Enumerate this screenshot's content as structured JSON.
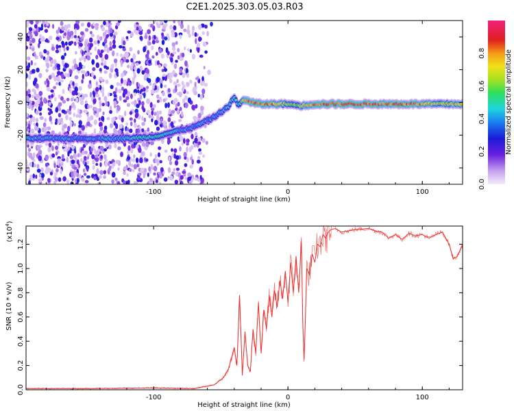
{
  "title": "C2E1.2025.303.05.03.R03",
  "chart_data": [
    {
      "type": "heatmap",
      "name": "spectrogram",
      "xlabel": "Height of straight line (km)",
      "ylabel": "Frequency (Hz)",
      "xlim": [
        -195,
        130
      ],
      "ylim": [
        -50,
        50
      ],
      "xticks": [
        -100,
        0,
        100
      ],
      "xtick_labels": [
        "-100",
        "0",
        "100"
      ],
      "yticks": [
        -40,
        -20,
        0,
        20,
        40
      ],
      "ytick_labels": [
        "-40",
        "-20",
        "0",
        "20",
        "40"
      ],
      "colorbar": {
        "label": "Normalized spectral amplitude",
        "range": [
          0,
          1
        ],
        "ticks": [
          0.0,
          0.2,
          0.4,
          0.6,
          0.8
        ],
        "tick_labels": [
          "0.0",
          "0.2",
          "0.4",
          "0.6",
          "0.8"
        ]
      },
      "ridge": {
        "x": [
          -195,
          -150,
          -120,
          -100,
          -85,
          -70,
          -55,
          -45,
          -40,
          -37,
          -33,
          -28,
          -20,
          -10,
          0,
          10,
          20,
          40,
          60,
          80,
          100,
          115,
          130
        ],
        "freq_hz": [
          -22,
          -22,
          -22,
          -21,
          -18,
          -15,
          -9,
          -3,
          3,
          -2,
          2,
          0,
          -1,
          -1,
          -1,
          -2,
          -1,
          -1,
          -1,
          -1,
          -1,
          -1,
          -1
        ],
        "amplitude": [
          0.45,
          0.4,
          0.45,
          0.5,
          0.45,
          0.4,
          0.4,
          0.45,
          0.5,
          0.45,
          0.7,
          0.9,
          0.85,
          0.8,
          0.6,
          0.7,
          0.85,
          0.9,
          0.9,
          0.9,
          0.85,
          0.7,
          0.8
        ]
      },
      "noise_region_x": [
        -195,
        -65
      ]
    },
    {
      "type": "line",
      "name": "snr",
      "xlabel": "Height of straight line (km)",
      "ylabel": "SNR (10 * v/v)",
      "y_multiplier_label": "(x10",
      "y_multiplier_exp": "4",
      "xlim": [
        -195,
        130
      ],
      "ylim": [
        0,
        1.35
      ],
      "xticks": [
        -100,
        0,
        100
      ],
      "xtick_labels": [
        "-100",
        "0",
        "100"
      ],
      "yticks": [
        0.0,
        0.2,
        0.4,
        0.6,
        0.8,
        1.0,
        1.2
      ],
      "ytick_labels": [
        "0.0",
        "0.2",
        "0.4",
        "0.6",
        "0.8",
        "1.0",
        "1.2"
      ],
      "color": "#e8312f",
      "series": [
        {
          "name": "SNR",
          "x": [
            -195,
            -150,
            -100,
            -70,
            -55,
            -48,
            -44,
            -40,
            -38,
            -36,
            -34,
            -32,
            -30,
            -28,
            -26,
            -24,
            -22,
            -20,
            -18,
            -16,
            -14,
            -12,
            -10,
            -8,
            -6,
            -4,
            -2,
            0,
            2,
            4,
            6,
            8,
            10,
            11,
            12,
            13,
            14,
            16,
            18,
            20,
            22,
            24,
            26,
            28,
            30,
            32,
            35,
            40,
            50,
            60,
            65,
            70,
            75,
            80,
            85,
            90,
            95,
            100,
            105,
            110,
            115,
            120,
            123,
            126,
            130
          ],
          "values": [
            0.01,
            0.01,
            0.015,
            0.01,
            0.04,
            0.1,
            0.18,
            0.35,
            0.2,
            0.78,
            0.12,
            0.48,
            0.2,
            0.15,
            0.5,
            0.3,
            0.72,
            0.3,
            0.66,
            0.5,
            0.78,
            0.6,
            0.82,
            0.68,
            0.9,
            0.75,
            0.98,
            0.72,
            1.05,
            0.8,
            1.1,
            0.8,
            1.22,
            0.55,
            0.25,
            0.6,
            1.0,
            0.95,
            1.12,
            1.05,
            1.2,
            1.18,
            1.28,
            1.25,
            1.3,
            1.32,
            1.33,
            1.3,
            1.32,
            1.33,
            1.31,
            1.3,
            1.25,
            1.28,
            1.24,
            1.29,
            1.27,
            1.28,
            1.25,
            1.28,
            1.3,
            1.2,
            1.08,
            1.1,
            1.2
          ]
        }
      ]
    }
  ]
}
